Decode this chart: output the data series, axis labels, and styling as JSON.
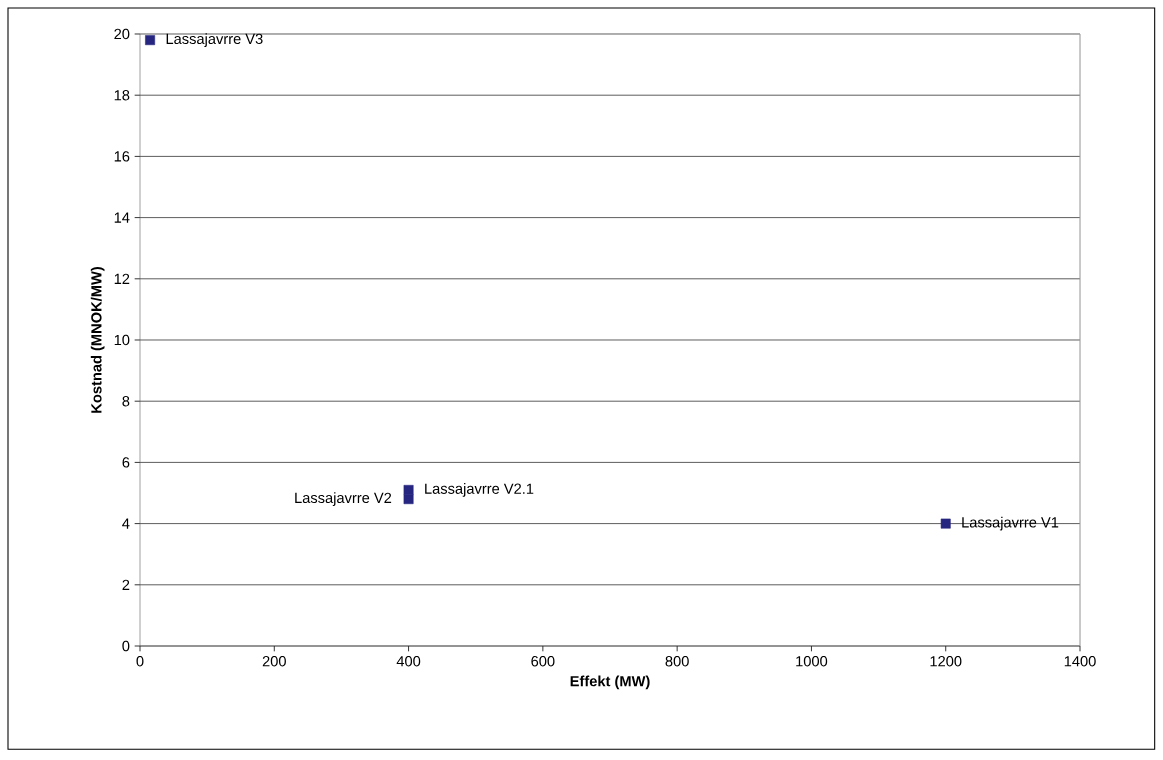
{
  "chart_data": {
    "type": "scatter",
    "xlabel": "Effekt (MW)",
    "ylabel": "Kostnad (MNOK/MW)",
    "x": [
      1200,
      400,
      400,
      15
    ],
    "values": [
      4.0,
      4.8,
      5.1,
      19.8
    ],
    "color": "#262680",
    "marker": "square",
    "xlim": [
      0,
      1400
    ],
    "xticks": [
      0,
      200,
      400,
      600,
      800,
      1000,
      1200,
      1400
    ],
    "ylim": [
      0,
      20
    ],
    "yticks": [
      0,
      2,
      4,
      6,
      8,
      10,
      12,
      14,
      16,
      18,
      20
    ],
    "grid": "y",
    "annotations": [
      {
        "text": "Lassajavrre V1",
        "x": 1200,
        "y": 4.0
      },
      {
        "text": "Lassajavrre V2",
        "x": 400,
        "y": 4.8
      },
      {
        "text": "Lassajavrre V2.1",
        "x": 400,
        "y": 5.1
      },
      {
        "text": "Lassajavrre V3",
        "x": 15,
        "y": 19.8
      }
    ]
  }
}
